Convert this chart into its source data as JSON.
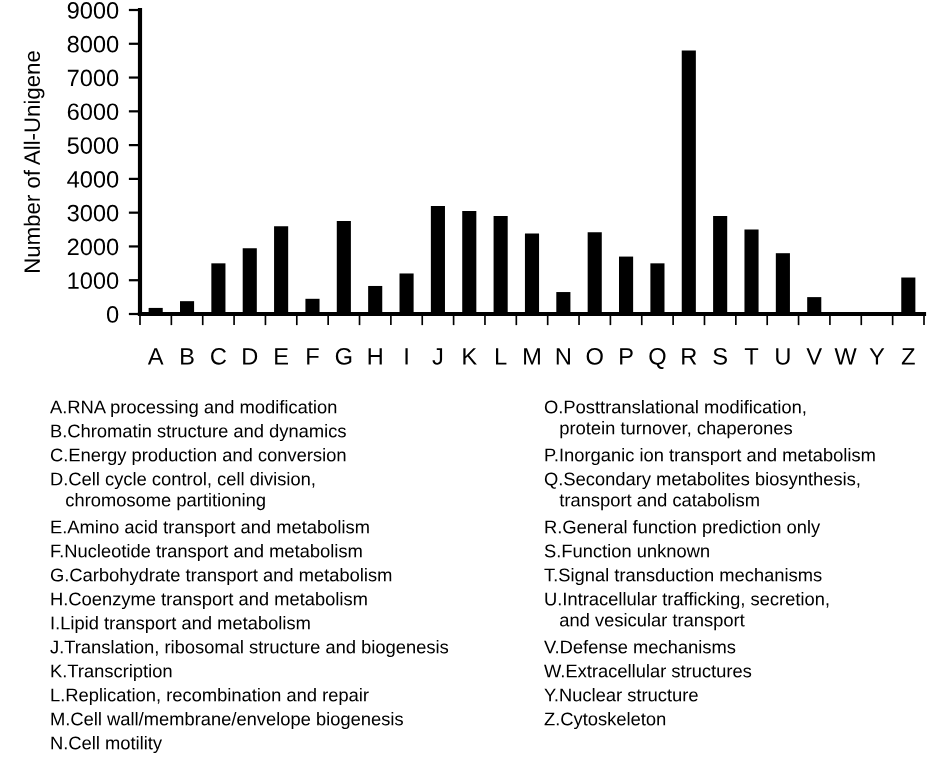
{
  "chart_data": {
    "type": "bar",
    "ylabel": "Number of All-Unigene",
    "categories": [
      "A",
      "B",
      "C",
      "D",
      "E",
      "F",
      "G",
      "H",
      "I",
      "J",
      "K",
      "L",
      "M",
      "N",
      "O",
      "P",
      "Q",
      "R",
      "S",
      "T",
      "U",
      "V",
      "W",
      "Y",
      "Z"
    ],
    "values": [
      180,
      380,
      1500,
      1950,
      2600,
      450,
      2750,
      830,
      1200,
      3200,
      3050,
      2900,
      2380,
      650,
      2420,
      1700,
      1500,
      7800,
      2900,
      2500,
      1800,
      500,
      50,
      10,
      1080
    ],
    "color": "#000000",
    "ylim": [
      0,
      9000
    ],
    "yticks": [
      0,
      1000,
      2000,
      3000,
      4000,
      5000,
      6000,
      7000,
      8000,
      9000
    ],
    "grid": false,
    "legend": false,
    "annotations": [
      "A.RNA processing and modification",
      "B.Chromatin structure and dynamics",
      "C.Energy production and conversion",
      "D.Cell cycle control, cell division,\n   chromosome partitioning",
      "E.Amino acid transport and metabolism",
      "F.Nucleotide transport and metabolism",
      "G.Carbohydrate transport and metabolism",
      "H.Coenzyme transport and metabolism",
      "I.Lipid transport and metabolism",
      "J.Translation, ribosomal structure and biogenesis",
      "K.Transcription",
      "L.Replication, recombination and repair",
      "M.Cell wall/membrane/envelope biogenesis",
      "N.Cell motility",
      "O.Posttranslational modification,\n   protein turnover, chaperones",
      "P.Inorganic ion transport and metabolism",
      "Q.Secondary metabolites biosynthesis,\n   transport and catabolism",
      "R.General function prediction only",
      "S.Function unknown",
      "T.Signal transduction mechanisms",
      "U.Intracellular trafficking, secretion,\n   and vesicular transport",
      "V.Defense mechanisms",
      "W.Extracellular structures",
      "Y.Nuclear structure",
      "Z.Cytoskeleton"
    ]
  }
}
